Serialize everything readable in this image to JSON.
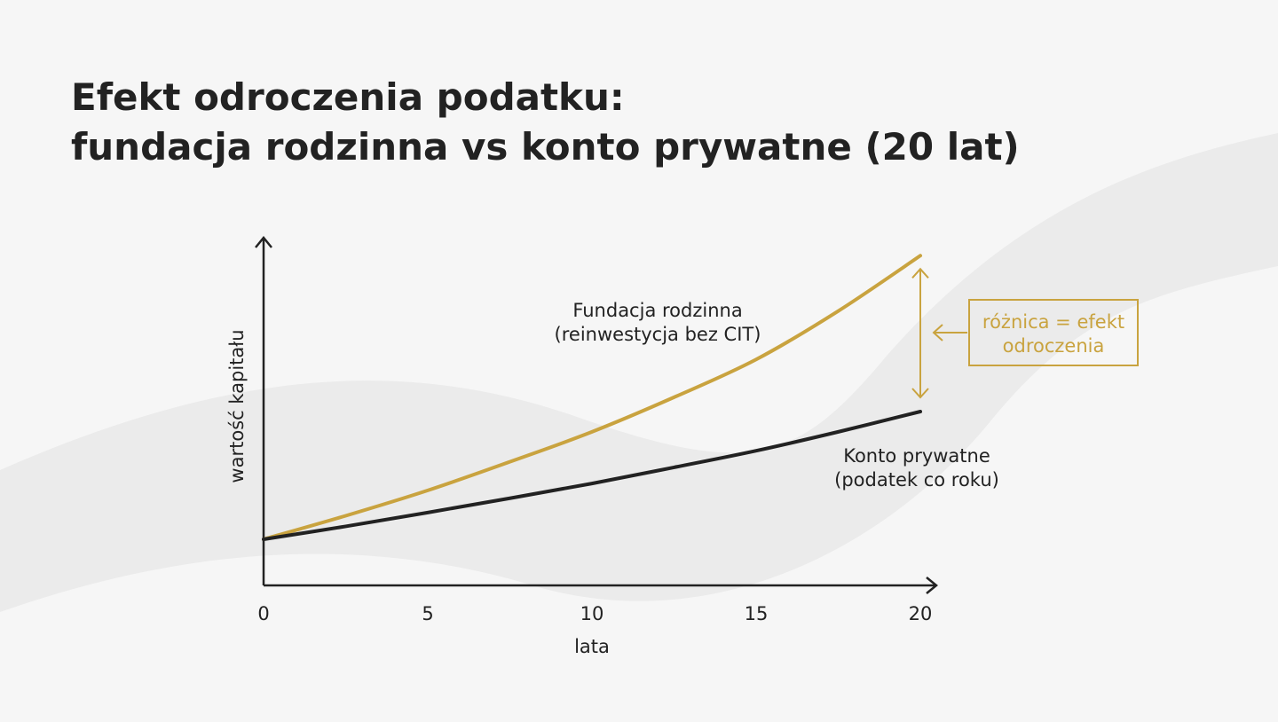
{
  "chart_data": {
    "type": "line",
    "title": [
      "Efekt odroczenia podatku:",
      "fundacja rodzinna vs konto prywatne (20 lat)"
    ],
    "x_label": "lata",
    "y_label": "wartość kapitału",
    "x": [
      0,
      2.5,
      5,
      7.5,
      10,
      12.5,
      15,
      17.5,
      20
    ],
    "xlim": [
      0,
      20
    ],
    "xticks": [
      0,
      5,
      10,
      15,
      20
    ],
    "ylim": [
      0,
      754
    ],
    "series": [
      {
        "name": "Fundacja rodzinna",
        "note": "(reinwestycja bez CIT)",
        "color": "#c9a33f",
        "values": [
          100,
          151,
          206,
          268,
          333,
          408,
          490,
          595,
          715
        ]
      },
      {
        "name": "Konto prywatne",
        "note": "(podatek co roku)",
        "color": "#222222",
        "values": [
          100,
          128,
          158,
          189,
          221,
          256,
          292,
          333,
          377
        ]
      }
    ],
    "annotation": [
      "różnica = efekt",
      "odroczenia"
    ]
  }
}
